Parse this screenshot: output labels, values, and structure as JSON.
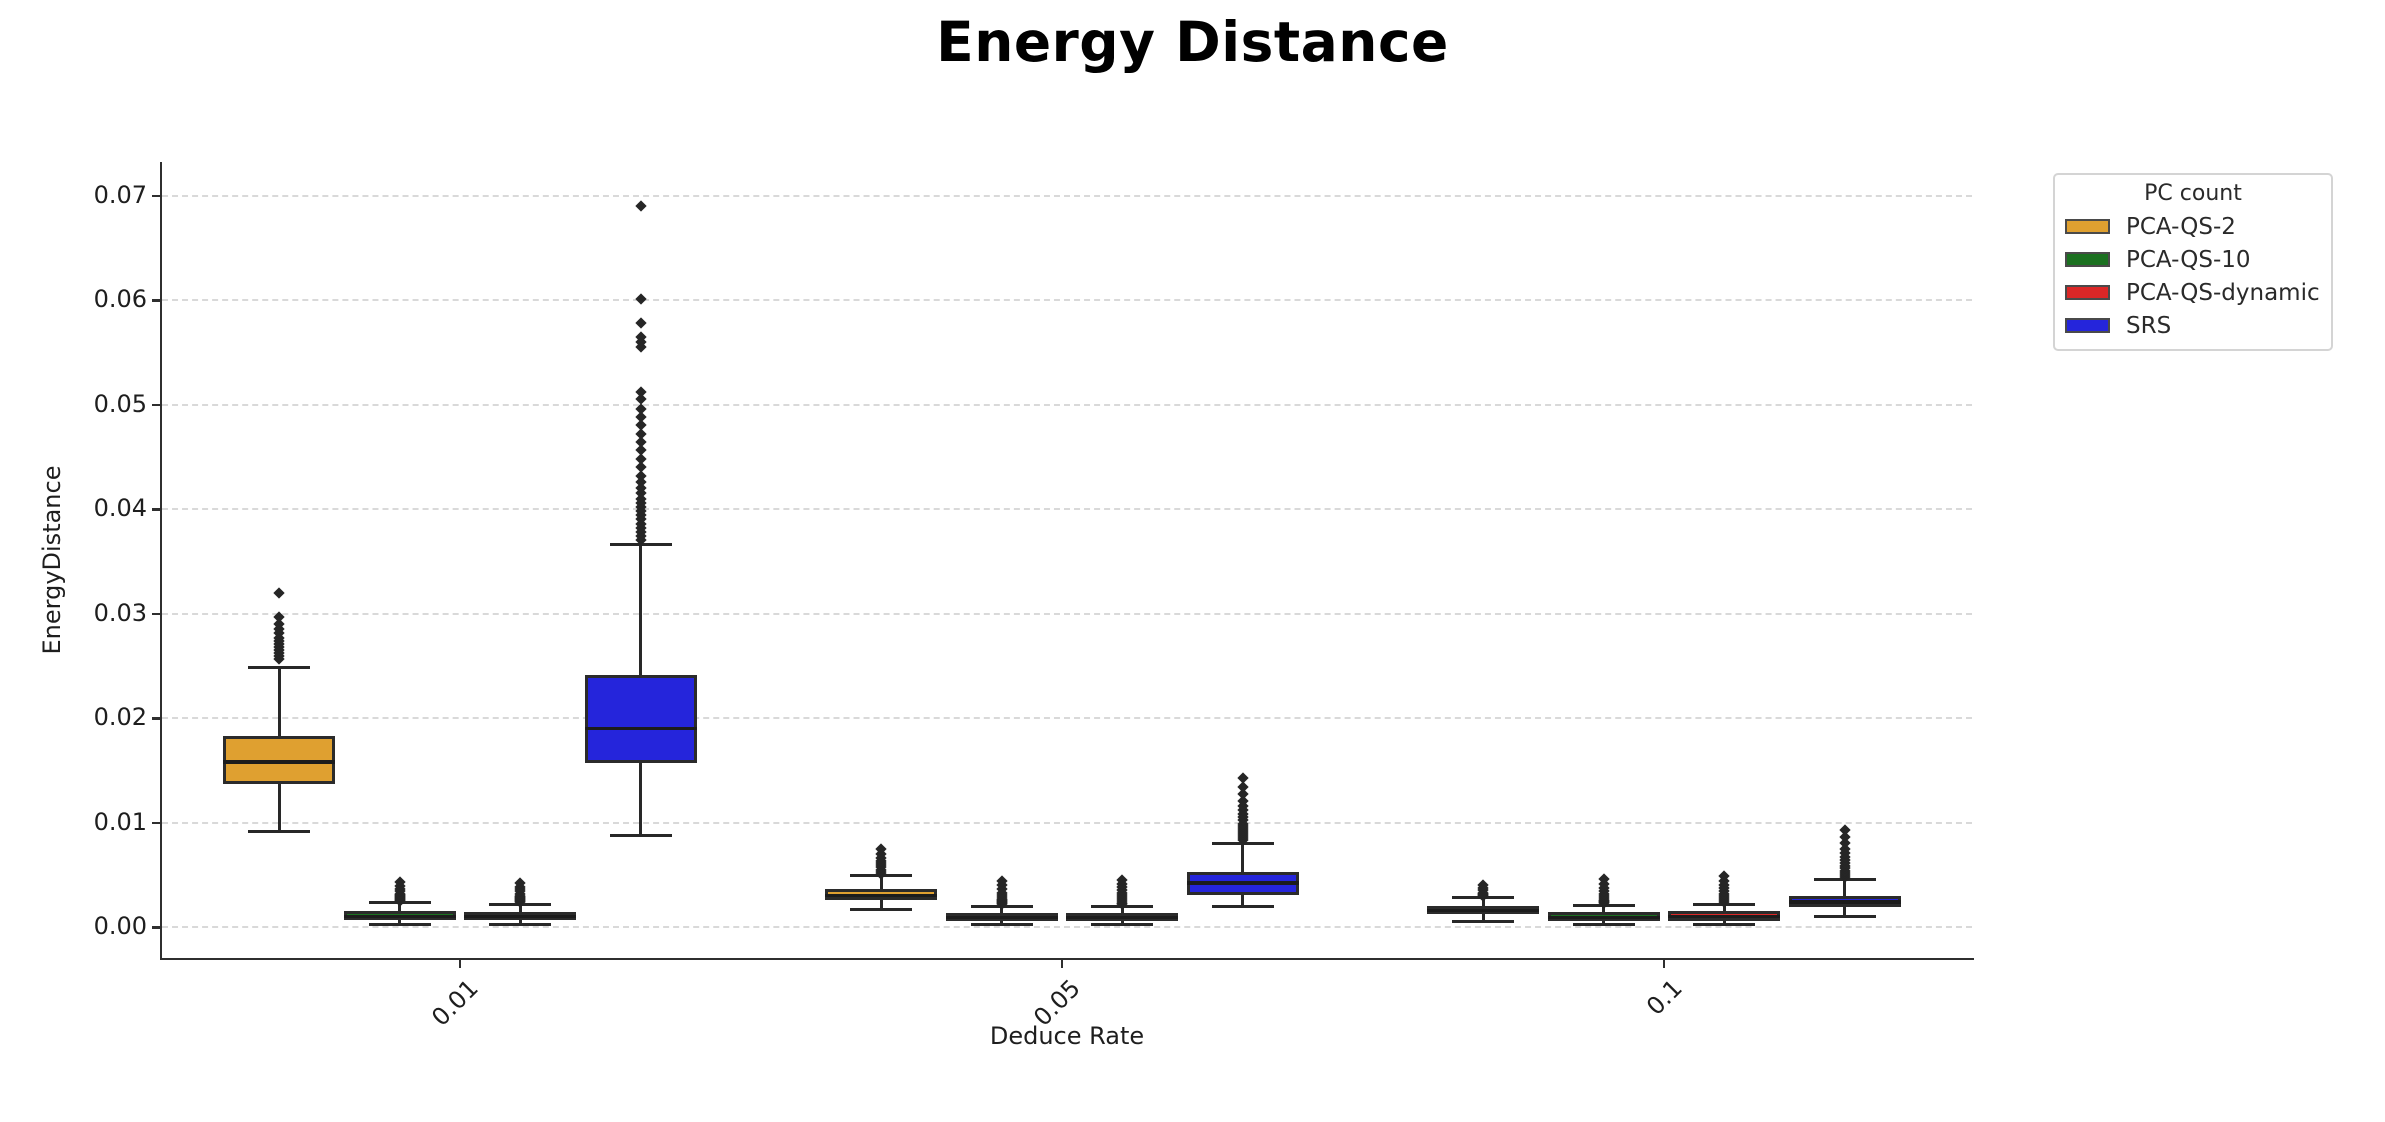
{
  "chart_data": {
    "type": "boxplot",
    "title": "Energy Distance",
    "xlabel": "Deduce Rate",
    "ylabel": "EnergyDistance",
    "categories": [
      "0.01",
      "0.05",
      "0.1"
    ],
    "y_ticks": [
      "0.00",
      "0.01",
      "0.02",
      "0.03",
      "0.04",
      "0.05",
      "0.06",
      "0.07"
    ],
    "ylim": [
      -0.003,
      0.0732
    ],
    "grid": "horizontal dashed",
    "legend": {
      "title": "PC count",
      "position": "outside upper right"
    },
    "series": [
      {
        "name": "PCA-QS-2",
        "color": "#DFA030",
        "boxes": [
          {
            "category": "0.01",
            "whisker_low": 0.0091,
            "q1": 0.0137,
            "median": 0.0158,
            "q3": 0.0183,
            "whisker_high": 0.0248,
            "outliers": [
              0.0256,
              0.0259,
              0.0262,
              0.0265,
              0.0268,
              0.0271,
              0.0274,
              0.0277,
              0.0281,
              0.0285,
              0.029,
              0.0297,
              0.032
            ]
          },
          {
            "category": "0.05",
            "whisker_low": 0.0017,
            "q1": 0.0026,
            "median": 0.003,
            "q3": 0.0036,
            "whisker_high": 0.0049,
            "outliers": [
              0.0051,
              0.0053,
              0.0055,
              0.0057,
              0.0059,
              0.0061,
              0.0063,
              0.0066,
              0.007,
              0.0075
            ]
          },
          {
            "category": "0.1",
            "whisker_low": 0.0005,
            "q1": 0.0012,
            "median": 0.0016,
            "q3": 0.002,
            "whisker_high": 0.0028,
            "outliers": [
              0.003,
              0.0031,
              0.0032,
              0.0033,
              0.0035,
              0.0037,
              0.004
            ]
          }
        ]
      },
      {
        "name": "PCA-QS-10",
        "color": "#1B7020",
        "boxes": [
          {
            "category": "0.01",
            "whisker_low": 0.0002,
            "q1": 0.0007,
            "median": 0.001,
            "q3": 0.0015,
            "whisker_high": 0.0023,
            "outliers": [
              0.0025,
              0.0026,
              0.0027,
              0.0028,
              0.0029,
              0.003,
              0.0031,
              0.0032,
              0.0034,
              0.0036,
              0.0039,
              0.0043
            ]
          },
          {
            "category": "0.05",
            "whisker_low": 0.0002,
            "q1": 0.0006,
            "median": 0.0009,
            "q3": 0.0013,
            "whisker_high": 0.002,
            "outliers": [
              0.0022,
              0.0023,
              0.0024,
              0.0025,
              0.0026,
              0.0027,
              0.0029,
              0.0031,
              0.0033,
              0.0036,
              0.004,
              0.0044
            ]
          },
          {
            "category": "0.1",
            "whisker_low": 0.0002,
            "q1": 0.0006,
            "median": 0.0009,
            "q3": 0.0014,
            "whisker_high": 0.0021,
            "outliers": [
              0.0023,
              0.0024,
              0.0025,
              0.0026,
              0.0028,
              0.003,
              0.0032,
              0.0034,
              0.0037,
              0.0041,
              0.0046
            ]
          }
        ]
      },
      {
        "name": "PCA-QS-dynamic",
        "color": "#DB2727",
        "boxes": [
          {
            "category": "0.01",
            "whisker_low": 0.0002,
            "q1": 0.0007,
            "median": 0.001,
            "q3": 0.0014,
            "whisker_high": 0.0022,
            "outliers": [
              0.0024,
              0.0025,
              0.0026,
              0.0027,
              0.0028,
              0.0029,
              0.003,
              0.0032,
              0.0034,
              0.0036,
              0.0038,
              0.0042
            ]
          },
          {
            "category": "0.05",
            "whisker_low": 0.0002,
            "q1": 0.0006,
            "median": 0.0009,
            "q3": 0.0013,
            "whisker_high": 0.002,
            "outliers": [
              0.0022,
              0.0023,
              0.0025,
              0.0027,
              0.0029,
              0.0031,
              0.0033,
              0.0035,
              0.0038,
              0.0041,
              0.0045
            ]
          },
          {
            "category": "0.1",
            "whisker_low": 0.0002,
            "q1": 0.0006,
            "median": 0.001,
            "q3": 0.0015,
            "whisker_high": 0.0022,
            "outliers": [
              0.0024,
              0.0026,
              0.0028,
              0.003,
              0.0032,
              0.0034,
              0.0037,
              0.004,
              0.0044,
              0.0049
            ]
          }
        ]
      },
      {
        "name": "SRS",
        "color": "#2525DB",
        "boxes": [
          {
            "category": "0.01",
            "whisker_low": 0.0088,
            "q1": 0.0157,
            "median": 0.019,
            "q3": 0.0241,
            "whisker_high": 0.0366,
            "outliers": [
              0.037,
              0.0374,
              0.0378,
              0.0382,
              0.0386,
              0.039,
              0.0394,
              0.0398,
              0.0402,
              0.0406,
              0.041,
              0.0415,
              0.042,
              0.0426,
              0.0432,
              0.044,
              0.0448,
              0.0456,
              0.0464,
              0.0472,
              0.048,
              0.0488,
              0.0496,
              0.0505,
              0.0512,
              0.0555,
              0.056,
              0.0565,
              0.0578,
              0.0601,
              0.069
            ]
          },
          {
            "category": "0.05",
            "whisker_low": 0.002,
            "q1": 0.0031,
            "median": 0.0042,
            "q3": 0.0053,
            "whisker_high": 0.008,
            "outliers": [
              0.0083,
              0.0085,
              0.0087,
              0.0089,
              0.0091,
              0.0093,
              0.0095,
              0.0097,
              0.0099,
              0.0102,
              0.0105,
              0.0108,
              0.0112,
              0.0116,
              0.0121,
              0.0127,
              0.0134,
              0.0143
            ]
          },
          {
            "category": "0.1",
            "whisker_low": 0.001,
            "q1": 0.0019,
            "median": 0.0024,
            "q3": 0.003,
            "whisker_high": 0.0045,
            "outliers": [
              0.0048,
              0.005,
              0.0052,
              0.0054,
              0.0056,
              0.0058,
              0.0061,
              0.0064,
              0.0067,
              0.0071,
              0.0075,
              0.008,
              0.0086,
              0.0093
            ]
          }
        ]
      }
    ],
    "style_colors": {
      "box_edge": "#2B2B2B",
      "median_line": "#1C1C1C",
      "outlier_marker": "#262626",
      "gridline": "#D9D9D9",
      "spine": "#2F2F2F",
      "background": "#FFFFFF"
    }
  }
}
